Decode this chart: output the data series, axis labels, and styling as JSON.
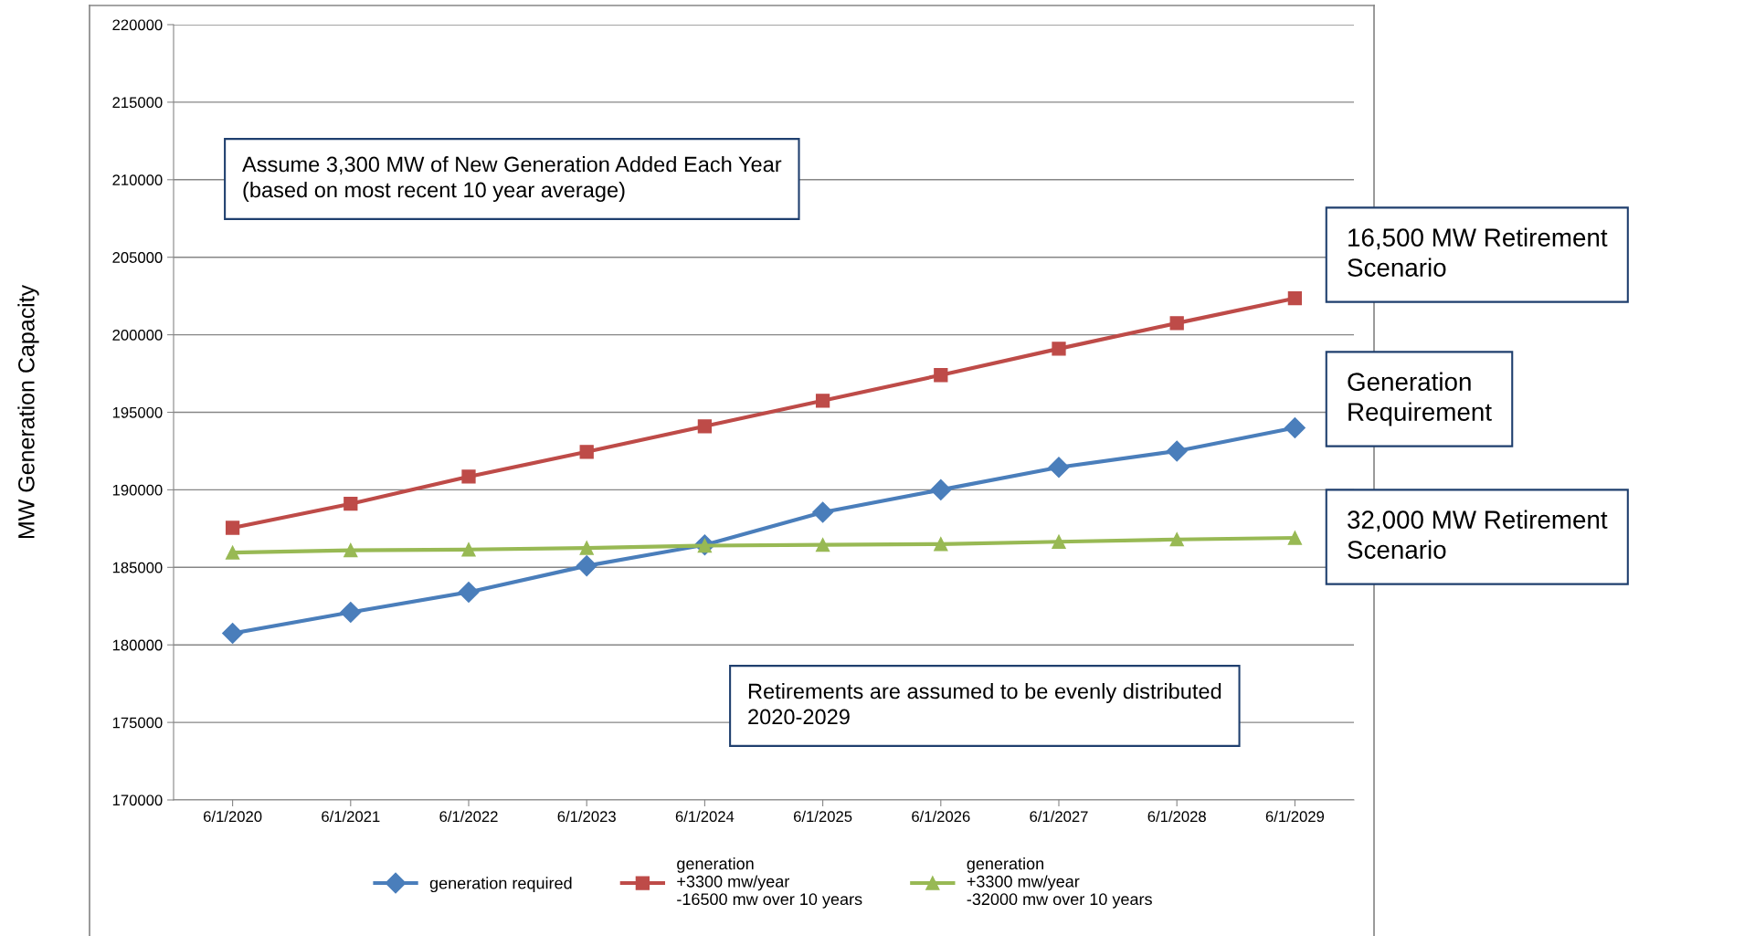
{
  "chart_data": {
    "type": "line",
    "ylabel": "MW Generation Capacity",
    "categories": [
      "6/1/2020",
      "6/1/2021",
      "6/1/2022",
      "6/1/2023",
      "6/1/2024",
      "6/1/2025",
      "6/1/2026",
      "6/1/2027",
      "6/1/2028",
      "6/1/2029"
    ],
    "series": [
      {
        "name": "generation required",
        "color": "#4a7ebb",
        "marker": "diamond",
        "values": [
          180750,
          182100,
          183400,
          185100,
          186450,
          188550,
          190000,
          191450,
          192500,
          194000
        ]
      },
      {
        "name": "generation\n+3300 mw/year\n-16500 mw over 10 years",
        "color": "#be4b48",
        "marker": "square",
        "values": [
          187550,
          189100,
          190850,
          192450,
          194100,
          195750,
          197400,
          199100,
          200750,
          202350
        ]
      },
      {
        "name": "generation\n+3300 mw/year\n-32000 mw over 10 years",
        "color": "#98b954",
        "marker": "triangle",
        "values": [
          185950,
          186100,
          186150,
          186250,
          186400,
          186450,
          186500,
          186650,
          186800,
          186900
        ]
      }
    ],
    "ylim": [
      170000,
      220000
    ],
    "yticks": [
      170000,
      175000,
      180000,
      185000,
      190000,
      195000,
      200000,
      205000,
      210000,
      215000,
      220000
    ],
    "grid": "y",
    "legend": "bottom",
    "annotations": [
      "Assume 3,300 MW of New Generation Added Each Year (based on most recent 10 year average)",
      "16,500 MW Retirement Scenario",
      "Generation Requirement",
      "32,000 MW Retirement Scenario",
      "Retirements are assumed to be evenly distributed 2020-2029"
    ]
  }
}
